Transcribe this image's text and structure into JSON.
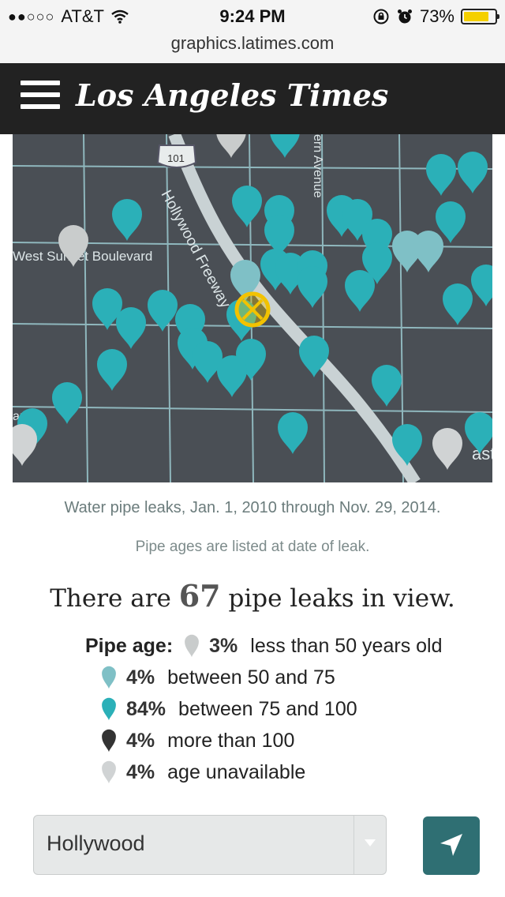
{
  "status_bar": {
    "signal": "●●○○○",
    "carrier": "AT&T",
    "time": "9:24 PM",
    "battery_percent": "73%",
    "battery_level": 0.73,
    "url": "graphics.latimes.com"
  },
  "header": {
    "logo_text": "Los Angeles Times"
  },
  "map": {
    "street_labels": {
      "highway_shield": "101",
      "freeway": "Hollywood Freeway",
      "boulevard": "West Sunset Boulevard",
      "avenue": "ern Avenue",
      "edge_left": "ard",
      "edge_right": "ast"
    },
    "colors": {
      "background": "#4a4f55",
      "streets": "#8fb7bd",
      "freeway": "#c9d2d4",
      "pin_84": "#2bb0b8",
      "pin_4_light": "#7fc0c6",
      "pin_dark": "#333333",
      "pin_unavailable": "#d0d3d4",
      "pin_under_50": "#c9cccc",
      "locator": "#f2c200"
    }
  },
  "caption": {
    "dates": "Water pipe leaks, Jan. 1, 2010 through Nov. 29, 2014.",
    "note": "Pipe ages are listed at date of leak."
  },
  "summary": {
    "prefix": "There are",
    "count": "67",
    "suffix": "pipe leaks in view."
  },
  "legend": {
    "title": "Pipe age:",
    "items": [
      {
        "pct": "3%",
        "label": "less than 50 years old",
        "color": "#c9cccc",
        "icon": "pin-icon"
      },
      {
        "pct": "4%",
        "label": "between 50 and 75",
        "color": "#7fc0c6",
        "icon": "pin-icon"
      },
      {
        "pct": "84%",
        "label": "between 75 and 100",
        "color": "#2bb0b8",
        "icon": "pin-icon"
      },
      {
        "pct": "4%",
        "label": "more than 100",
        "color": "#333333",
        "icon": "pin-icon"
      },
      {
        "pct": "4%",
        "label": "age unavailable",
        "color": "#d0d3d4",
        "icon": "pin-icon"
      }
    ]
  },
  "neighborhood_select": {
    "value": "Hollywood"
  },
  "locate_button": {
    "icon": "location-arrow-icon"
  }
}
